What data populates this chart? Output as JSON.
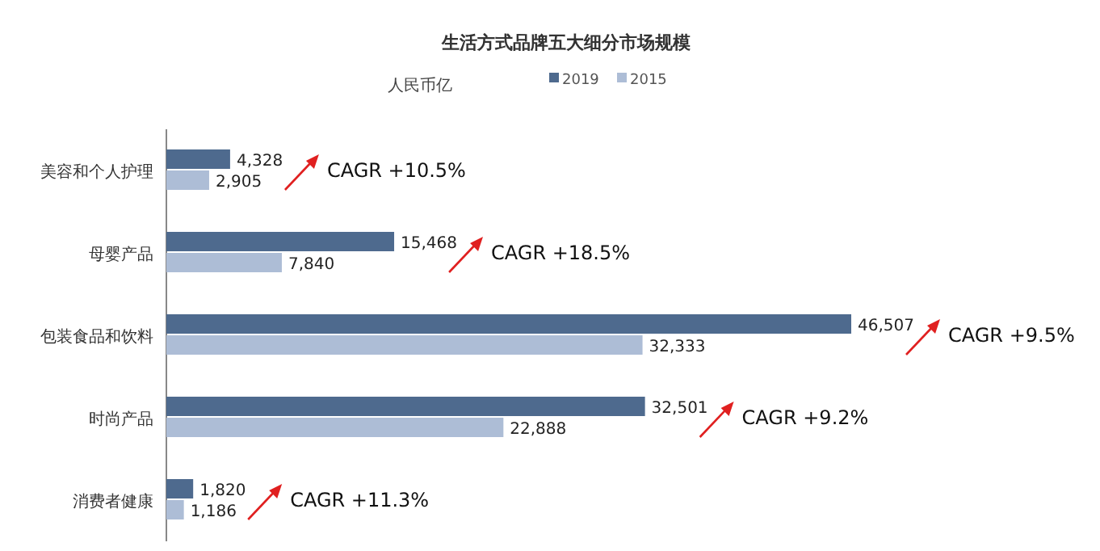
{
  "chart_data": {
    "type": "bar",
    "orientation": "horizontal",
    "title": "生活方式品牌五大细分市场规模",
    "subtitle": "人民币亿",
    "categories": [
      "美容和个人护理",
      "母婴产品",
      "包装食品和饮料",
      "时尚产品",
      "消费者健康"
    ],
    "series": [
      {
        "name": "2019",
        "color": "#4e6a8e",
        "values": [
          4328,
          15468,
          46507,
          32501,
          1820
        ],
        "value_labels": [
          "4,328",
          "15,468",
          "46,507",
          "32,501",
          "1,820"
        ]
      },
      {
        "name": "2015",
        "color": "#adbdd6",
        "values": [
          2905,
          7840,
          32333,
          22888,
          1186
        ],
        "value_labels": [
          "2,905",
          "7,840",
          "32,333",
          "22,888",
          "1,186"
        ]
      }
    ],
    "legend": "top",
    "tick_labels": "y",
    "annotations": [
      "CAGR +10.5%",
      "CAGR +18.5%",
      "CAGR +9.5%",
      "CAGR +9.2%",
      "CAGR +11.3%"
    ]
  }
}
